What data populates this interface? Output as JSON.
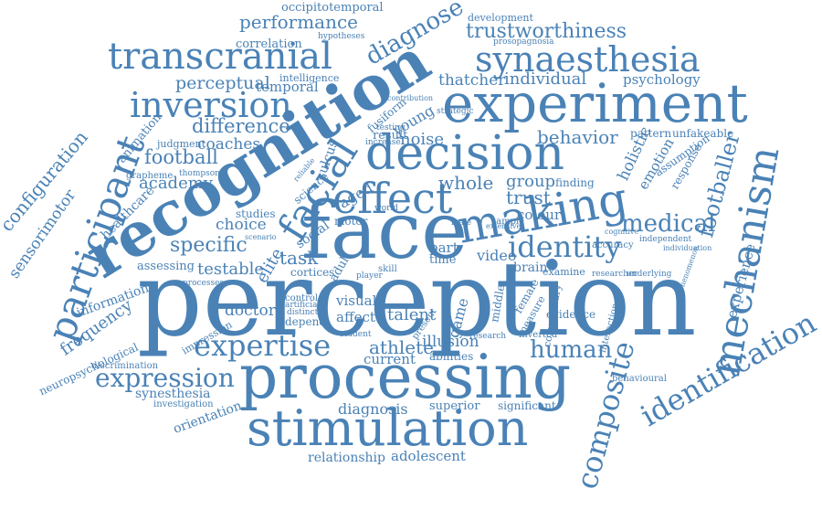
{
  "words": [
    {
      "text": "perception"
    },
    {
      "text": "face"
    },
    {
      "text": "recognition"
    },
    {
      "text": "experiment"
    },
    {
      "text": "processing"
    },
    {
      "text": "stimulation"
    },
    {
      "text": "decision"
    },
    {
      "text": "making"
    },
    {
      "text": "effect"
    },
    {
      "text": "facial"
    },
    {
      "text": "transcranial"
    },
    {
      "text": "synaesthesia"
    },
    {
      "text": "inversion"
    },
    {
      "text": "participant"
    },
    {
      "text": "mechanism"
    },
    {
      "text": "identification"
    },
    {
      "text": "composite"
    },
    {
      "text": "expertise"
    },
    {
      "text": "expression"
    },
    {
      "text": "identity"
    },
    {
      "text": "human"
    },
    {
      "text": "medical"
    },
    {
      "text": "footballer"
    },
    {
      "text": "configuration"
    },
    {
      "text": "sensorimotor"
    },
    {
      "text": "frequency"
    },
    {
      "text": "neuropsychological"
    },
    {
      "text": "performance"
    },
    {
      "text": "diagnose"
    },
    {
      "text": "trustworthiness"
    },
    {
      "text": "occipitotemporal"
    },
    {
      "text": "development"
    },
    {
      "text": "prosopagnosia"
    },
    {
      "text": "correlation"
    },
    {
      "text": "hypotheses"
    },
    {
      "text": "perceptual"
    },
    {
      "text": "temporal"
    },
    {
      "text": "intelligence"
    },
    {
      "text": "thatcher"
    },
    {
      "text": "individual"
    },
    {
      "text": "psychology"
    },
    {
      "text": "difference"
    },
    {
      "text": "coaches"
    },
    {
      "text": "judgment"
    },
    {
      "text": "football"
    },
    {
      "text": "animation"
    },
    {
      "text": "academy"
    },
    {
      "text": "grapheme"
    },
    {
      "text": "thompson"
    },
    {
      "text": "healthcare"
    },
    {
      "text": "specific"
    },
    {
      "text": "testable"
    },
    {
      "text": "assessing"
    },
    {
      "text": "choice"
    },
    {
      "text": "studies"
    },
    {
      "text": "elite"
    },
    {
      "text": "task"
    },
    {
      "text": "social"
    },
    {
      "text": "cortices"
    },
    {
      "text": "information"
    },
    {
      "text": "doctor"
    },
    {
      "text": "impression"
    },
    {
      "text": "discrimination"
    },
    {
      "text": "synesthesia"
    },
    {
      "text": "investigation"
    },
    {
      "text": "orientation"
    },
    {
      "text": "athlete"
    },
    {
      "text": "current"
    },
    {
      "text": "diagnosis"
    },
    {
      "text": "relationship"
    },
    {
      "text": "adolescent"
    },
    {
      "text": "superior"
    },
    {
      "text": "significant"
    },
    {
      "text": "illusion"
    },
    {
      "text": "abilities"
    },
    {
      "text": "talent"
    },
    {
      "text": "visual"
    },
    {
      "text": "affect"
    },
    {
      "text": "depend"
    },
    {
      "text": "control"
    },
    {
      "text": "artificial"
    },
    {
      "text": "distinct"
    },
    {
      "text": "student"
    },
    {
      "text": "noise"
    },
    {
      "text": "result"
    },
    {
      "text": "young"
    },
    {
      "text": "fusiform"
    },
    {
      "text": "behavior"
    },
    {
      "text": "holistic"
    },
    {
      "text": "emotion"
    },
    {
      "text": "response"
    },
    {
      "text": "assumption"
    },
    {
      "text": "unfakeable"
    },
    {
      "text": "pattern"
    },
    {
      "text": "group"
    },
    {
      "text": "whole"
    },
    {
      "text": "trust"
    },
    {
      "text": "colour"
    },
    {
      "text": "finding"
    },
    {
      "text": "video"
    },
    {
      "text": "part"
    },
    {
      "text": "time"
    },
    {
      "text": "brain"
    },
    {
      "text": "examine"
    },
    {
      "text": "researcher"
    },
    {
      "text": "underlying"
    },
    {
      "text": "accuracy"
    },
    {
      "text": "experience"
    },
    {
      "text": "commentary"
    },
    {
      "text": "evidence"
    },
    {
      "text": "interaction"
    },
    {
      "text": "inverted"
    },
    {
      "text": "game"
    },
    {
      "text": "middle"
    },
    {
      "text": "female"
    },
    {
      "text": "measure"
    },
    {
      "text": "research"
    },
    {
      "text": "sample"
    },
    {
      "text": "behavioural"
    },
    {
      "text": "science"
    },
    {
      "text": "motor"
    },
    {
      "text": "adult"
    },
    {
      "text": "aged"
    },
    {
      "text": "sulcus"
    },
    {
      "text": "skill"
    },
    {
      "text": "world"
    },
    {
      "text": "strategic"
    },
    {
      "text": "testing"
    },
    {
      "text": "increase"
    },
    {
      "text": "contribution"
    },
    {
      "text": "player"
    },
    {
      "text": "reliable"
    },
    {
      "text": "independent"
    },
    {
      "text": "individuation"
    },
    {
      "text": "phenomenon"
    },
    {
      "text": "cognitive"
    },
    {
      "text": "present"
    },
    {
      "text": "male"
    },
    {
      "text": "extensive"
    },
    {
      "text": "scenario"
    },
    {
      "text": "processes"
    }
  ]
}
